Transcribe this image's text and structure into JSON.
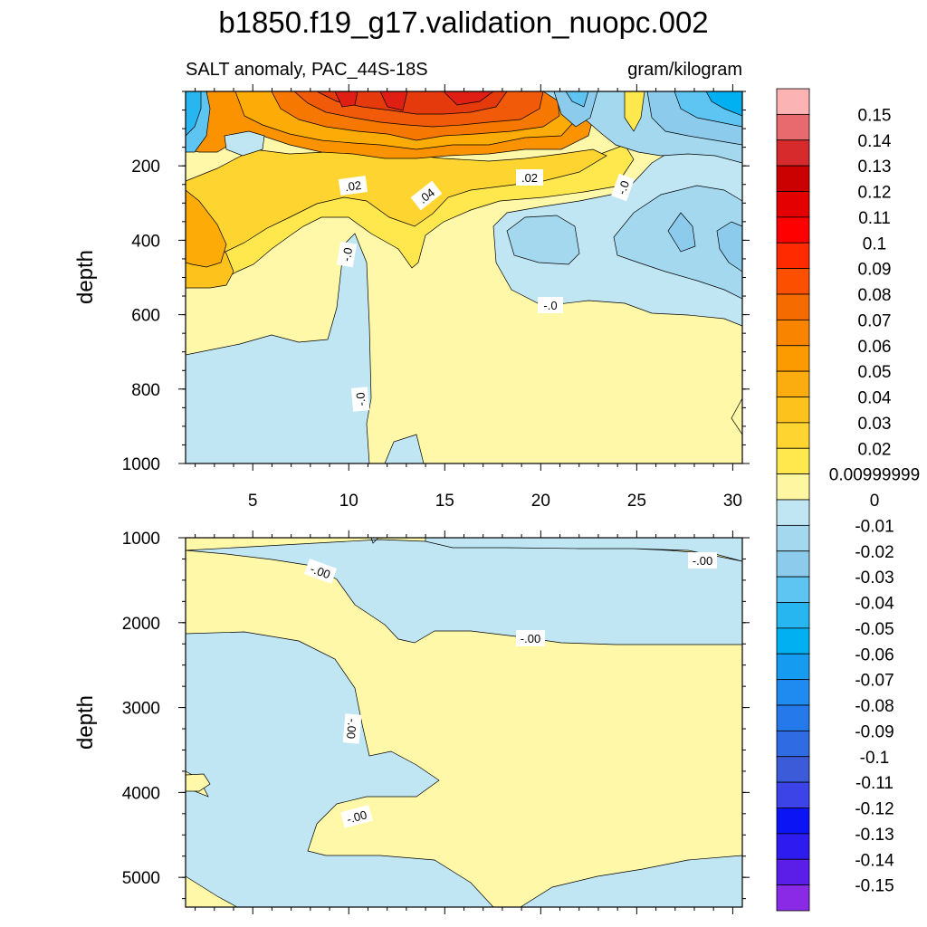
{
  "colors": {
    "neg_001": "#c0e6f4",
    "neg_002": "#a4d8ef",
    "neg_003": "#8ccbeb",
    "neg_004": "#5ec4f2",
    "neg_005": "#27b6f0",
    "neg_006": "#00b0f0",
    "pos_001": "#fff8a9",
    "pos_002": "#fee84e",
    "pos_003": "#fed530",
    "pos_004": "#fdc21c",
    "pos_005": "#fcab07",
    "pos_006": "#fb9300",
    "pos_007": "#f67800",
    "pos_008": "#f05a08",
    "pos_009": "#e43a0c",
    "pos_010": "#df1f13"
  },
  "chart_data": {
    "type": "heatmap",
    "title": "b1850.f19_g17.validation_nuopc.002",
    "subtitle_left": "SALT anomaly, PAC_44S-18S",
    "subtitle_right": "gram/kilogram",
    "x_ticks": [
      "5",
      "10",
      "15",
      "20",
      "25",
      "30"
    ],
    "xlim": [
      1.5,
      30.5
    ],
    "panels": [
      {
        "ylabel": "depth",
        "ylim": [
          1000,
          0
        ],
        "y_ticks": [
          "200",
          "400",
          "600",
          "800",
          "1000"
        ],
        "contour_labels": [
          ".02",
          ".04",
          ".02",
          "-.0",
          "-.0",
          "-.0",
          "-.0"
        ]
      },
      {
        "ylabel": "depth",
        "ylim": [
          5350,
          1000
        ],
        "y_ticks": [
          "1000",
          "2000",
          "3000",
          "4000",
          "5000"
        ],
        "contour_labels": [
          "-.00",
          "-.00",
          "-.00",
          "-.00",
          "-.00"
        ]
      }
    ],
    "colorbar": {
      "labels": [
        "0.15",
        "0.14",
        "0.13",
        "0.12",
        "0.11",
        "0.1",
        "0.09",
        "0.08",
        "0.07",
        "0.06",
        "0.05",
        "0.04",
        "0.03",
        "0.02",
        "0.00999999",
        "0",
        "-0.01",
        "-0.02",
        "-0.03",
        "-0.04",
        "-0.05",
        "-0.06",
        "-0.07",
        "-0.08",
        "-0.09",
        "-0.1",
        "-0.11",
        "-0.12",
        "-0.13",
        "-0.14",
        "-0.15"
      ],
      "colors": [
        "#fcb3b4",
        "#e86a6e",
        "#d62a2c",
        "#cb0000",
        "#e50000",
        "#ff0000",
        "#ff2a00",
        "#fc5000",
        "#f66b00",
        "#f88400",
        "#fb9b00",
        "#fbad10",
        "#fdc21c",
        "#fed530",
        "#fee84e",
        "#fff6a1",
        "#c0e6f4",
        "#a4d8ef",
        "#8ccbeb",
        "#5ec4f2",
        "#27b6f0",
        "#00b0f0",
        "#159bf0",
        "#1f8af0",
        "#2679ea",
        "#2f6be3",
        "#3b5bd9",
        "#3c44e8",
        "#0a14f5",
        "#2e1bef",
        "#5a1ee8",
        "#8a2ae6"
      ]
    }
  }
}
